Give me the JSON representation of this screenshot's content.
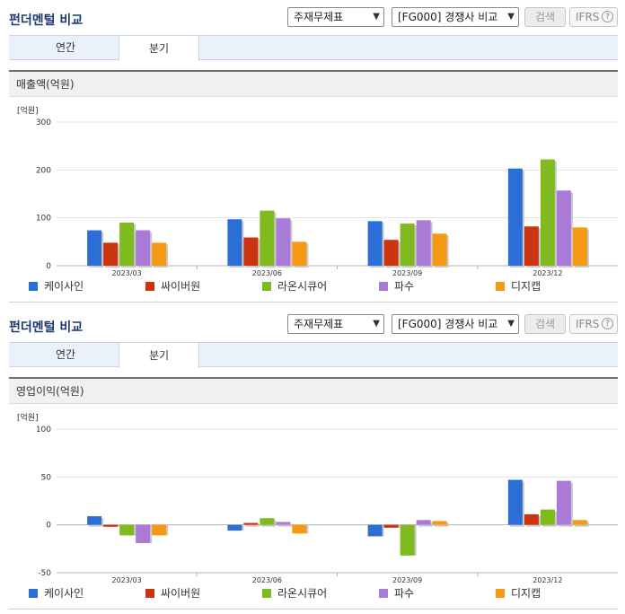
{
  "header": {
    "title": "펀더멘털 비교",
    "statement_select": "주재무제표",
    "compare_select": "[FG000] 경쟁사 비교",
    "search_button": "검색",
    "ifrs_label": "IFRS",
    "help_glyph": "?"
  },
  "tabs": [
    {
      "label": "연간",
      "active": false
    },
    {
      "label": "분기",
      "active": true
    }
  ],
  "colors": {
    "케이사인": "#2b6fd6",
    "싸이버원": "#cc3311",
    "라온시큐어": "#7fba1e",
    "파수": "#a97bd6",
    "디지캡": "#f59a12"
  },
  "chart_data": [
    {
      "type": "bar",
      "title": "매출액(억원)",
      "ylabel": "[억원]",
      "categories": [
        "2023/03",
        "2023/06",
        "2023/09",
        "2023/12"
      ],
      "ylim": [
        0,
        300
      ],
      "yticks": [
        0,
        100,
        200,
        300
      ],
      "legend": "bottom",
      "series": [
        {
          "name": "케이사인",
          "values": [
            74,
            97,
            93,
            203
          ]
        },
        {
          "name": "싸이버원",
          "values": [
            48,
            59,
            54,
            82
          ]
        },
        {
          "name": "라온시큐어",
          "values": [
            90,
            115,
            88,
            222
          ]
        },
        {
          "name": "파수",
          "values": [
            74,
            99,
            95,
            157
          ]
        },
        {
          "name": "디지캡",
          "values": [
            48,
            50,
            67,
            80
          ]
        }
      ]
    },
    {
      "type": "bar",
      "title": "영업이익(억원)",
      "ylabel": "[억원]",
      "categories": [
        "2023/03",
        "2023/06",
        "2023/09",
        "2023/12"
      ],
      "ylim": [
        -50,
        100
      ],
      "yticks": [
        -50,
        0,
        50,
        100
      ],
      "legend": "bottom",
      "series": [
        {
          "name": "케이사인",
          "values": [
            9,
            -6,
            -12,
            47
          ]
        },
        {
          "name": "싸이버원",
          "values": [
            -2,
            2,
            -3,
            11
          ]
        },
        {
          "name": "라온시큐어",
          "values": [
            -11,
            7,
            -32,
            16
          ]
        },
        {
          "name": "파수",
          "values": [
            -19,
            3,
            5,
            46
          ]
        },
        {
          "name": "디지캡",
          "values": [
            -11,
            -9,
            4,
            5
          ]
        }
      ]
    }
  ]
}
